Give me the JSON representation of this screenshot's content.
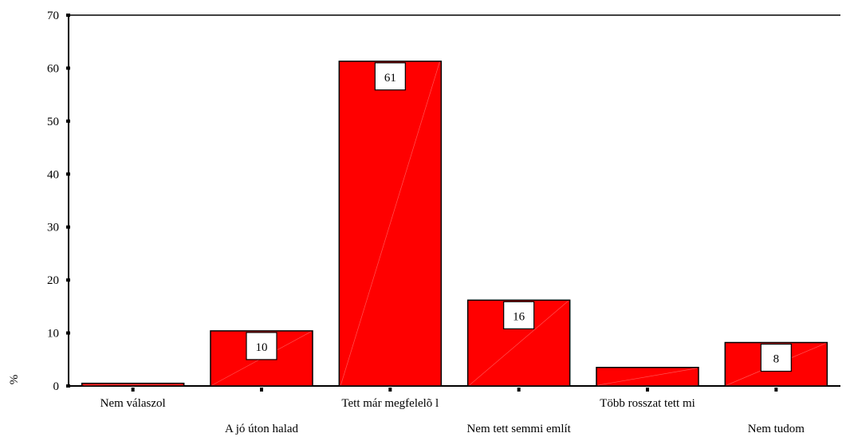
{
  "chart_data": {
    "type": "bar",
    "categories": [
      "Nem válaszol",
      "A jó úton halad",
      "Tett már megfelelõ l",
      "Nem tett semmi említ",
      "Több rosszat tett mi",
      "Nem tudom"
    ],
    "values": [
      0.5,
      10.4,
      61.3,
      16.2,
      3.5,
      8.2
    ],
    "data_labels": [
      "",
      "10",
      "61",
      "16",
      "",
      "8"
    ],
    "title": "",
    "xlabel": "",
    "ylabel": "%",
    "ylim": [
      0,
      70
    ],
    "yticks": [
      "0",
      "10",
      "20",
      "30",
      "40",
      "50",
      "60",
      "70"
    ],
    "grid": false,
    "bar_color": "#FF0000",
    "bar_edge_color": "#000000"
  }
}
